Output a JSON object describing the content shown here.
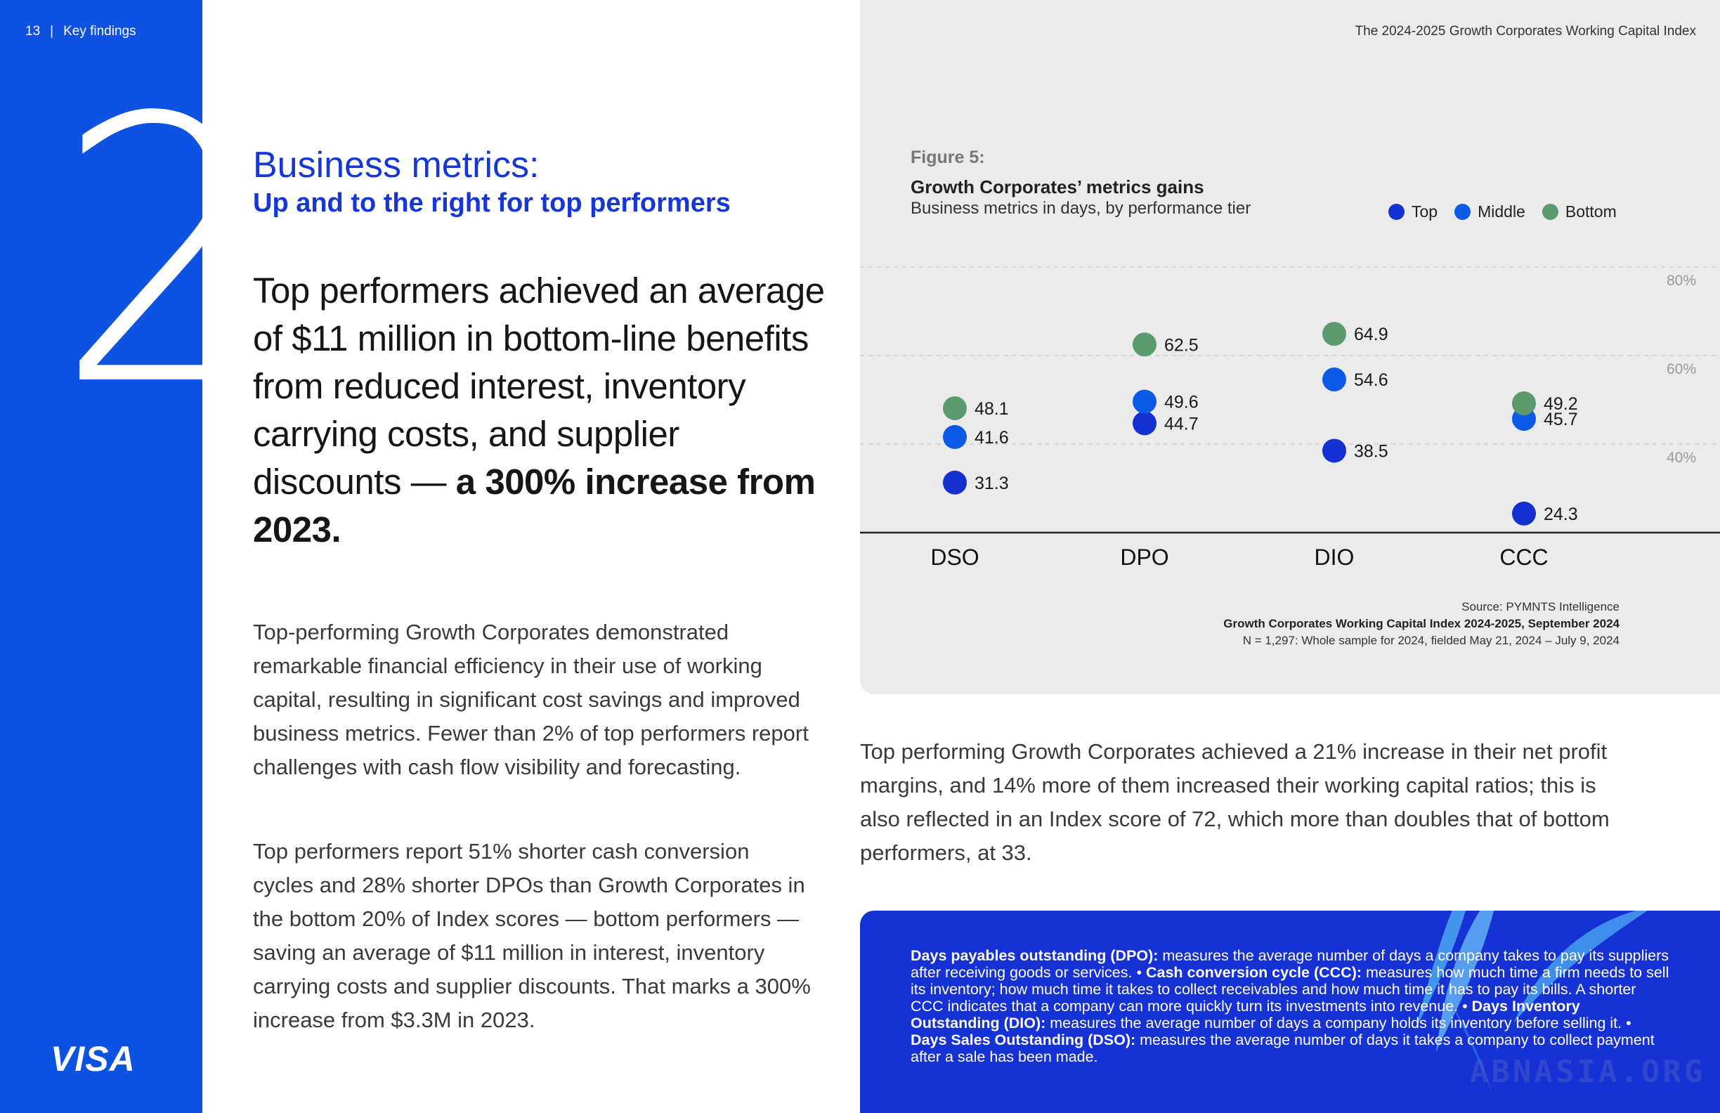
{
  "page": {
    "number": "13",
    "separator": "|",
    "section": "Key findings",
    "doc_title": "The 2024-2025 Growth Corporates Working Capital Index",
    "big_number": "2",
    "brand": "VISA"
  },
  "headline": {
    "kicker": "Business metrics:",
    "subhead": "Up and to the right for top performers",
    "lead_normal": "Top performers achieved an average of $11 million in bottom-line benefits from reduced interest, inventory carrying costs, and supplier discounts —",
    "lead_bold": "a 300% increase from 2023."
  },
  "body": {
    "p1": "Top-performing Growth Corporates demonstrated remarkable financial efficiency in their use of working capital, resulting in significant cost savings and improved business metrics. Fewer than 2% of top performers report challenges with cash flow visibility and forecasting.",
    "p2": "Top performers report 51% shorter cash conversion cycles and 28% shorter DPOs than Growth Corporates in the bottom 20% of Index scores — bottom performers — saving an average of $11 million in interest, inventory carrying costs and supplier discounts. That marks a 300% increase from $3.3M in 2023.",
    "right": "Top performing Growth Corporates achieved a 21% increase in their net profit margins, and 14% more of them increased  their working capital ratios; this is also reflected in an Index score of 72, which more than doubles that of bottom performers, at 33."
  },
  "figure": {
    "label": "Figure 5:",
    "title": "Growth Corporates’ metrics gains",
    "subtitle": "Business metrics in days, by performance tier",
    "source_line1": "Source: PYMNTS Intelligence",
    "source_line2": "Growth Corporates Working Capital Index 2024-2025, September 2024",
    "source_line3": "N = 1,297: Whole sample for 2024, fielded May 21, 2024 – July 9, 2024"
  },
  "chart_data": {
    "type": "scatter",
    "categories": [
      "DSO",
      "DPO",
      "DIO",
      "CCC"
    ],
    "series": [
      {
        "name": "Top",
        "color": "#1530d0",
        "values": [
          31.3,
          44.7,
          38.5,
          24.3
        ]
      },
      {
        "name": "Middle",
        "color": "#0b5ae8",
        "values": [
          41.6,
          49.6,
          54.6,
          45.7
        ]
      },
      {
        "name": "Bottom",
        "color": "#5b9a6e",
        "values": [
          48.1,
          62.5,
          64.9,
          49.2
        ]
      }
    ],
    "y_ticks": [
      "40%",
      "60%",
      "80%"
    ],
    "ylim": [
      20,
      80
    ],
    "grid": true,
    "legend": "top-right"
  },
  "definitions": {
    "dpo_term": "Days payables outstanding (DPO):",
    "dpo_text": " measures the average number of days a company takes to pay its suppliers after receiving goods or services. •",
    "ccc_term": " Cash conversion cycle (CCC):",
    "ccc_text": " measures how much time a firm needs to sell its inventory; how much time it takes to collect receivables and how much time it has to pay its bills. A shorter CCC indicates that a company can more quickly turn its investments into revenue. •",
    "dio_term": " Days Inventory Outstanding (DIO):",
    "dio_text": " measures the average number of days a company holds its inventory before selling it.  •",
    "dso_term": " Days Sales Outstanding (DSO):",
    "dso_text": " measures the average number of days it takes a company to collect payment after a sale has been made."
  },
  "watermark": "ABNASIA.ORG"
}
